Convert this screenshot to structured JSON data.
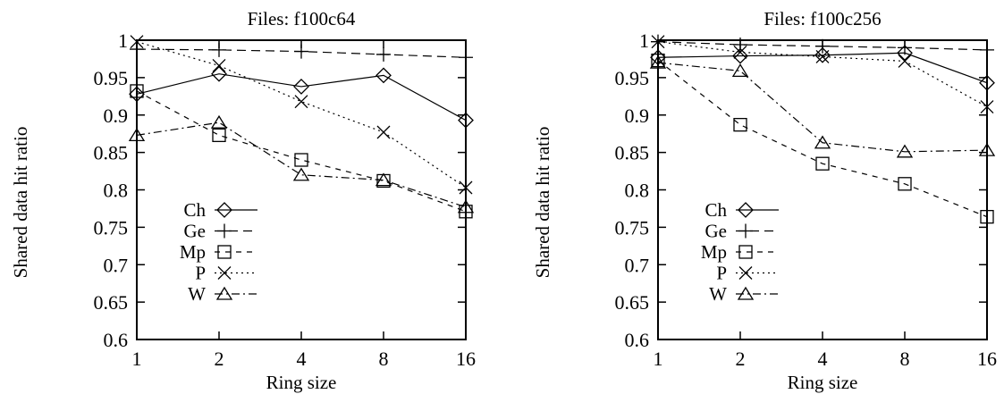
{
  "chart_data": [
    {
      "type": "line",
      "title": "Files: f100c64",
      "xlabel": "Ring size",
      "ylabel": "Shared data hit ratio",
      "x_scale": "log2",
      "xticks": [
        "1",
        "2",
        "4",
        "8",
        "16"
      ],
      "x": [
        1,
        2,
        4,
        8,
        16
      ],
      "ylim": [
        0.6,
        1.0
      ],
      "yticks": [
        "0.6",
        "0.65",
        "0.7",
        "0.75",
        "0.8",
        "0.85",
        "0.9",
        "0.95",
        "1"
      ],
      "grid": false,
      "legend_position": "bottom-left",
      "series": [
        {
          "name": "Ch",
          "marker": "diamond",
          "dash": "solid",
          "values": [
            0.928,
            0.955,
            0.938,
            0.953,
            0.893
          ]
        },
        {
          "name": "Ge",
          "marker": "plus",
          "dash": "longdash",
          "values": [
            0.988,
            0.987,
            0.985,
            0.981,
            0.977
          ]
        },
        {
          "name": "Mp",
          "marker": "square",
          "dash": "dash",
          "values": [
            0.932,
            0.873,
            0.84,
            0.812,
            0.771
          ]
        },
        {
          "name": "P",
          "marker": "cross",
          "dash": "dot",
          "values": [
            0.998,
            0.966,
            0.918,
            0.877,
            0.803
          ]
        },
        {
          "name": "W",
          "marker": "triangle",
          "dash": "dashdot",
          "values": [
            0.873,
            0.89,
            0.82,
            0.813,
            0.777
          ]
        }
      ]
    },
    {
      "type": "line",
      "title": "Files: f100c256",
      "xlabel": "Ring size",
      "ylabel": "Shared data hit ratio",
      "x_scale": "log2",
      "xticks": [
        "1",
        "2",
        "4",
        "8",
        "16"
      ],
      "x": [
        1,
        2,
        4,
        8,
        16
      ],
      "ylim": [
        0.6,
        1.0
      ],
      "yticks": [
        "0.6",
        "0.65",
        "0.7",
        "0.75",
        "0.8",
        "0.85",
        "0.9",
        "0.95",
        "1"
      ],
      "grid": false,
      "legend_position": "bottom-left",
      "series": [
        {
          "name": "Ch",
          "marker": "diamond",
          "dash": "solid",
          "values": [
            0.977,
            0.979,
            0.98,
            0.983,
            0.943
          ]
        },
        {
          "name": "Ge",
          "marker": "plus",
          "dash": "longdash",
          "values": [
            0.998,
            0.994,
            0.992,
            0.99,
            0.987
          ]
        },
        {
          "name": "Mp",
          "marker": "square",
          "dash": "dash",
          "values": [
            0.973,
            0.887,
            0.835,
            0.808,
            0.764
          ]
        },
        {
          "name": "P",
          "marker": "cross",
          "dash": "dot",
          "values": [
            0.998,
            0.984,
            0.978,
            0.972,
            0.911
          ]
        },
        {
          "name": "W",
          "marker": "triangle",
          "dash": "dashdot",
          "values": [
            0.97,
            0.959,
            0.863,
            0.851,
            0.853
          ]
        }
      ]
    }
  ]
}
